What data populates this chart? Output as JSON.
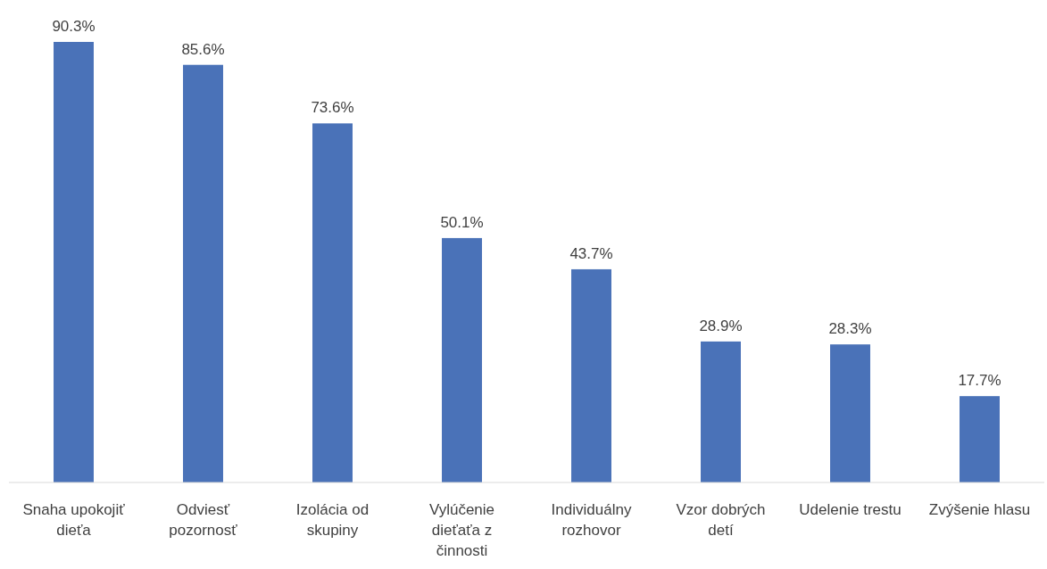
{
  "chart_data": {
    "type": "bar",
    "categories": [
      "Snaha upokojiť dieťa",
      "Odviesť pozornosť",
      "Izolácia od skupiny",
      "Vylúčenie dieťaťa z činnosti",
      "Individuálny rozhovor",
      "Vzor dobrých detí",
      "Udelenie trestu",
      "Zvýšenie hlasu"
    ],
    "values": [
      90.3,
      85.6,
      73.6,
      50.1,
      43.7,
      28.9,
      28.3,
      17.7
    ],
    "value_labels": [
      "90.3%",
      "85.6%",
      "73.6%",
      "50.1%",
      "43.7%",
      "28.9%",
      "28.3%",
      "17.7%"
    ],
    "color": "#4a72b8"
  }
}
